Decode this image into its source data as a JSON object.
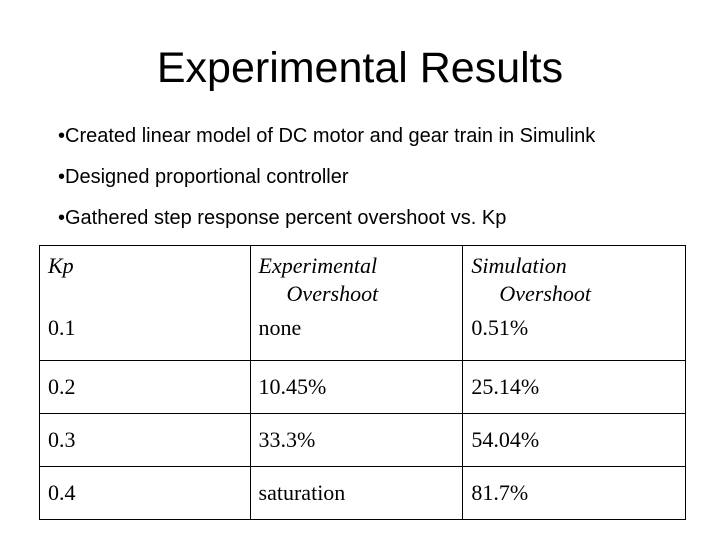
{
  "slide": {
    "title": "Experimental Results",
    "bullets": [
      "•Created linear model of DC motor and gear train in Simulink",
      "•Designed proportional controller",
      "•Gathered step response percent overshoot vs. Kp"
    ]
  },
  "table": {
    "headers": {
      "kp": "Kp",
      "exp_line1": "Experimental",
      "exp_line2": "Overshoot",
      "sim_line1": "Simulation",
      "sim_line2": "Overshoot"
    },
    "rows": [
      {
        "kp": "0.1",
        "experimental": "none",
        "simulation": "0.51%"
      },
      {
        "kp": "0.2",
        "experimental": "10.45%",
        "simulation": "25.14%"
      },
      {
        "kp": "0.3",
        "experimental": "33.3%",
        "simulation": "54.04%"
      },
      {
        "kp": "0.4",
        "experimental": "saturation",
        "simulation": "81.7%"
      }
    ]
  }
}
